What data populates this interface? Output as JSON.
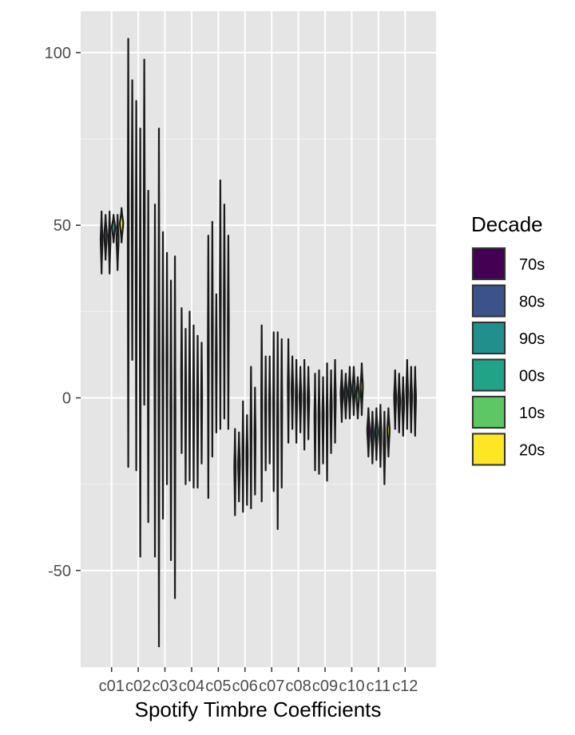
{
  "chart_data": {
    "type": "violin",
    "xlabel": "Spotify Timbre Coefficients",
    "ylabel": "",
    "categories": [
      "c01",
      "c02",
      "c03",
      "c04",
      "c05",
      "c06",
      "c07",
      "c08",
      "c09",
      "c10",
      "c11",
      "c12"
    ],
    "y_ticks": [
      -50,
      0,
      50,
      100
    ],
    "ylim": [
      -78,
      112
    ],
    "grid": true,
    "legend": {
      "title": "Decade",
      "position": "right",
      "entries": [
        {
          "name": "70s",
          "color": "#440154"
        },
        {
          "name": "80s",
          "color": "#3b528b"
        },
        {
          "name": "90s",
          "color": "#21908d"
        },
        {
          "name": "00s",
          "color": "#20a386"
        },
        {
          "name": "10s",
          "color": "#5dc863"
        },
        {
          "name": "20s",
          "color": "#fde725"
        }
      ]
    },
    "series": [
      {
        "name": "70s",
        "color": "#440154",
        "ranges": [
          [
            36,
            54
          ],
          [
            -20,
            104
          ],
          [
            -46,
            56
          ],
          [
            -16,
            26
          ],
          [
            -29,
            47
          ],
          [
            -34,
            -9
          ],
          [
            -30,
            21
          ],
          [
            -13,
            17
          ],
          [
            -21,
            7
          ],
          [
            -7,
            8
          ],
          [
            -17,
            -3
          ],
          [
            -9,
            8
          ]
        ]
      },
      {
        "name": "80s",
        "color": "#3b528b",
        "ranges": [
          [
            40,
            53
          ],
          [
            11,
            92
          ],
          [
            -72,
            78
          ],
          [
            -25,
            20
          ],
          [
            -17,
            51
          ],
          [
            -30,
            -10
          ],
          [
            -21,
            12
          ],
          [
            -9,
            12
          ],
          [
            -22,
            8
          ],
          [
            -6,
            7
          ],
          [
            -19,
            -4
          ],
          [
            -10,
            7
          ]
        ]
      },
      {
        "name": "90s",
        "color": "#21908d",
        "ranges": [
          [
            36,
            54
          ],
          [
            -21,
            86
          ],
          [
            -35,
            48
          ],
          [
            -24,
            25
          ],
          [
            -10,
            30
          ],
          [
            -33,
            -1
          ],
          [
            -19,
            12
          ],
          [
            -13,
            11
          ],
          [
            -19,
            6
          ],
          [
            -6,
            9
          ],
          [
            -18,
            -3
          ],
          [
            -11,
            6
          ]
        ]
      },
      {
        "name": "00s",
        "color": "#20a386",
        "ranges": [
          [
            45,
            53
          ],
          [
            -46,
            78
          ],
          [
            -25,
            42
          ],
          [
            -26,
            21
          ],
          [
            -9,
            63
          ],
          [
            -31,
            -5
          ],
          [
            -27,
            19
          ],
          [
            -10,
            9
          ],
          [
            -24,
            10
          ],
          [
            -5,
            9
          ],
          [
            -20,
            -2
          ],
          [
            -9,
            11
          ]
        ]
      },
      {
        "name": "10s",
        "color": "#5dc863",
        "ranges": [
          [
            37,
            53
          ],
          [
            -2,
            98
          ],
          [
            -47,
            34
          ],
          [
            -26,
            18
          ],
          [
            -6,
            56
          ],
          [
            -32,
            9
          ],
          [
            -38,
            19
          ],
          [
            -15,
            11
          ],
          [
            -16,
            8
          ],
          [
            -6,
            6
          ],
          [
            -25,
            -4
          ],
          [
            -10,
            9
          ]
        ]
      },
      {
        "name": "20s",
        "color": "#fde725",
        "ranges": [
          [
            45,
            55
          ],
          [
            -36,
            60
          ],
          [
            -58,
            41
          ],
          [
            -19,
            16
          ],
          [
            -9,
            47
          ],
          [
            -28,
            3
          ],
          [
            -26,
            17
          ],
          [
            -12,
            9
          ],
          [
            -13,
            11
          ],
          [
            -5,
            10
          ],
          [
            -17,
            -3
          ],
          [
            -11,
            9
          ]
        ]
      }
    ]
  }
}
